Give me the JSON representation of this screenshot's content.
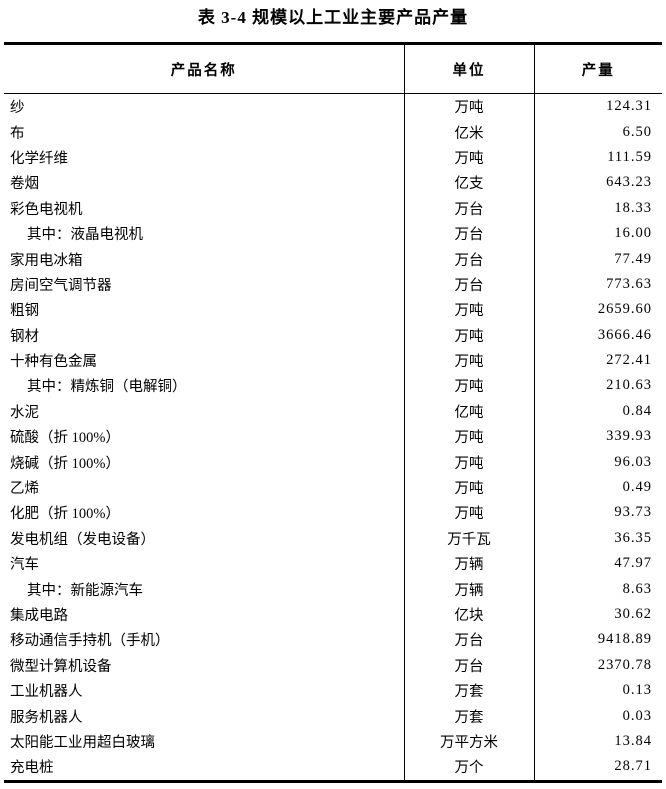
{
  "title": "表 3-4 规模以上工业主要产品产量",
  "table": {
    "headers": {
      "name": "产品名称",
      "unit": "单位",
      "output": "产量"
    },
    "rows": [
      {
        "name": "纱",
        "unit": "万吨",
        "value": "124.31",
        "indent": false
      },
      {
        "name": "布",
        "unit": "亿米",
        "value": "6.50",
        "indent": false
      },
      {
        "name": "化学纤维",
        "unit": "万吨",
        "value": "111.59",
        "indent": false
      },
      {
        "name": "卷烟",
        "unit": "亿支",
        "value": "643.23",
        "indent": false
      },
      {
        "name": "彩色电视机",
        "unit": "万台",
        "value": "18.33",
        "indent": false
      },
      {
        "name": "其中：液晶电视机",
        "unit": "万台",
        "value": "16.00",
        "indent": true
      },
      {
        "name": "家用电冰箱",
        "unit": "万台",
        "value": "77.49",
        "indent": false
      },
      {
        "name": "房间空气调节器",
        "unit": "万台",
        "value": "773.63",
        "indent": false
      },
      {
        "name": "粗钢",
        "unit": "万吨",
        "value": "2659.60",
        "indent": false
      },
      {
        "name": "钢材",
        "unit": "万吨",
        "value": "3666.46",
        "indent": false
      },
      {
        "name": "十种有色金属",
        "unit": "万吨",
        "value": "272.41",
        "indent": false
      },
      {
        "name": "其中：精炼铜（电解铜）",
        "unit": "万吨",
        "value": "210.63",
        "indent": true
      },
      {
        "name": "水泥",
        "unit": "亿吨",
        "value": "0.84",
        "indent": false
      },
      {
        "name": "硫酸（折 100%）",
        "unit": "万吨",
        "value": "339.93",
        "indent": false
      },
      {
        "name": "烧碱（折 100%）",
        "unit": "万吨",
        "value": "96.03",
        "indent": false
      },
      {
        "name": "乙烯",
        "unit": "万吨",
        "value": "0.49",
        "indent": false
      },
      {
        "name": "化肥（折 100%）",
        "unit": "万吨",
        "value": "93.73",
        "indent": false
      },
      {
        "name": "发电机组（发电设备）",
        "unit": "万千瓦",
        "value": "36.35",
        "indent": false
      },
      {
        "name": "汽车",
        "unit": "万辆",
        "value": "47.97",
        "indent": false
      },
      {
        "name": "其中：新能源汽车",
        "unit": "万辆",
        "value": "8.63",
        "indent": true
      },
      {
        "name": "集成电路",
        "unit": "亿块",
        "value": "30.62",
        "indent": false
      },
      {
        "name": "移动通信手持机（手机）",
        "unit": "万台",
        "value": "9418.89",
        "indent": false
      },
      {
        "name": "微型计算机设备",
        "unit": "万台",
        "value": "2370.78",
        "indent": false
      },
      {
        "name": "工业机器人",
        "unit": "万套",
        "value": "0.13",
        "indent": false
      },
      {
        "name": "服务机器人",
        "unit": "万套",
        "value": "0.03",
        "indent": false
      },
      {
        "name": "太阳能工业用超白玻璃",
        "unit": "万平方米",
        "value": "13.84",
        "indent": false
      },
      {
        "name": "充电桩",
        "unit": "万个",
        "value": "28.71",
        "indent": false
      }
    ]
  }
}
